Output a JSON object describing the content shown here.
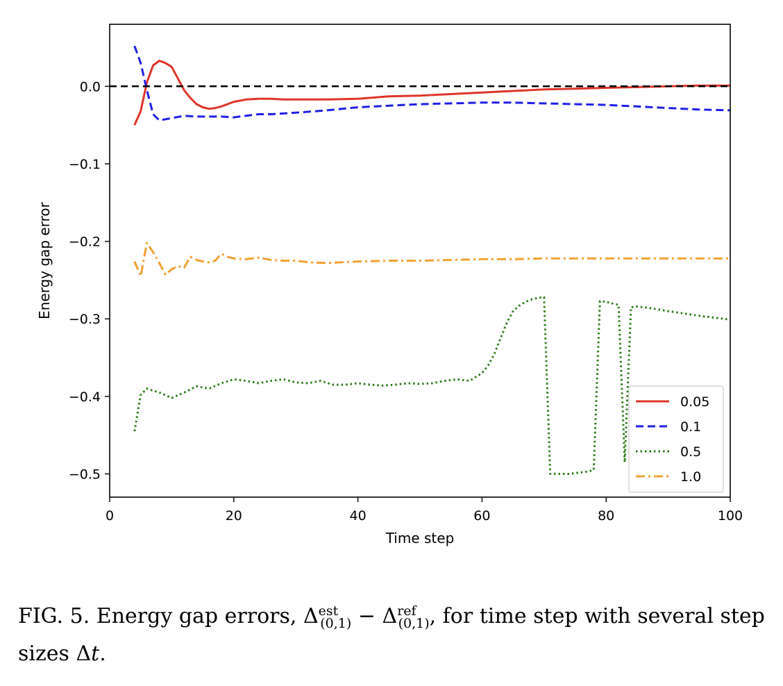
{
  "chart_data": {
    "type": "line",
    "xlabel": "Time step",
    "ylabel": "Energy gap error",
    "xlim": [
      0,
      100
    ],
    "ylim": [
      -0.53,
      0.08
    ],
    "xticks": [
      0,
      20,
      40,
      60,
      80,
      100
    ],
    "xtick_labels": [
      "0",
      "20",
      "40",
      "60",
      "80",
      "100"
    ],
    "yticks": [
      0.0,
      -0.1,
      -0.2,
      -0.3,
      -0.4,
      -0.5
    ],
    "ytick_labels": [
      "0.0",
      "−0.1",
      "−0.2",
      "−0.3",
      "−0.4",
      "−0.5"
    ],
    "grid": false,
    "legend_position": "lower-right",
    "reference_line": {
      "y": 0.0,
      "color": "#000000",
      "style": "dashed"
    },
    "series": [
      {
        "name": "0.05",
        "color": "#e0352b",
        "style": "solid",
        "x": [
          4,
          5,
          6,
          7,
          8,
          9,
          10,
          11,
          12,
          13,
          14,
          15,
          16,
          17,
          18,
          20,
          22,
          24,
          26,
          28,
          30,
          35,
          40,
          45,
          50,
          55,
          60,
          65,
          70,
          75,
          80,
          85,
          90,
          95,
          100
        ],
        "y": [
          -0.05,
          -0.032,
          0.005,
          0.027,
          0.033,
          0.03,
          0.025,
          0.01,
          -0.005,
          -0.015,
          -0.023,
          -0.027,
          -0.029,
          -0.028,
          -0.026,
          -0.02,
          -0.017,
          -0.016,
          -0.016,
          -0.017,
          -0.017,
          -0.017,
          -0.016,
          -0.013,
          -0.012,
          -0.01,
          -0.008,
          -0.006,
          -0.004,
          -0.003,
          -0.002,
          -0.001,
          0.0,
          0.001,
          0.001
        ]
      },
      {
        "name": "0.1",
        "color": "#1f1fe6",
        "style": "dashed",
        "x": [
          4,
          5,
          6,
          7,
          8,
          10,
          12,
          14,
          16,
          18,
          20,
          22,
          24,
          26,
          28,
          30,
          35,
          40,
          45,
          50,
          55,
          60,
          65,
          70,
          75,
          80,
          85,
          90,
          95,
          100
        ],
        "y": [
          0.052,
          0.03,
          -0.005,
          -0.036,
          -0.044,
          -0.041,
          -0.038,
          -0.039,
          -0.039,
          -0.039,
          -0.04,
          -0.038,
          -0.036,
          -0.036,
          -0.035,
          -0.034,
          -0.031,
          -0.027,
          -0.025,
          -0.023,
          -0.022,
          -0.021,
          -0.021,
          -0.022,
          -0.023,
          -0.024,
          -0.026,
          -0.028,
          -0.03,
          -0.031
        ]
      },
      {
        "name": "0.5",
        "color": "#2c7c17",
        "style": "dotted",
        "x": [
          4,
          5,
          6,
          8,
          10,
          12,
          14,
          16,
          18,
          20,
          22,
          24,
          26,
          28,
          30,
          32,
          34,
          36,
          38,
          40,
          42,
          44,
          46,
          48,
          50,
          52,
          54,
          56,
          58,
          60,
          61,
          62,
          63,
          64,
          65,
          66,
          67,
          68,
          69,
          70,
          71,
          72,
          73,
          74,
          75,
          76,
          77,
          78,
          79,
          80,
          81,
          82,
          83,
          84,
          85,
          87,
          90,
          95,
          100
        ],
        "y": [
          -0.445,
          -0.398,
          -0.39,
          -0.395,
          -0.402,
          -0.395,
          -0.387,
          -0.39,
          -0.383,
          -0.378,
          -0.38,
          -0.383,
          -0.38,
          -0.378,
          -0.382,
          -0.383,
          -0.38,
          -0.385,
          -0.385,
          -0.383,
          -0.385,
          -0.386,
          -0.385,
          -0.383,
          -0.384,
          -0.383,
          -0.38,
          -0.378,
          -0.38,
          -0.37,
          -0.36,
          -0.345,
          -0.325,
          -0.305,
          -0.29,
          -0.283,
          -0.278,
          -0.275,
          -0.273,
          -0.272,
          -0.5,
          -0.5,
          -0.5,
          -0.5,
          -0.499,
          -0.498,
          -0.497,
          -0.495,
          -0.277,
          -0.278,
          -0.28,
          -0.282,
          -0.485,
          -0.285,
          -0.284,
          -0.286,
          -0.29,
          -0.296,
          -0.301
        ]
      },
      {
        "name": "1.0",
        "color": "#f1a133",
        "style": "dashdot",
        "x": [
          4,
          5,
          6,
          7,
          8,
          9,
          10,
          11,
          12,
          13,
          14,
          15,
          16,
          17,
          18,
          19,
          20,
          22,
          24,
          26,
          28,
          30,
          32,
          35,
          40,
          45,
          50,
          55,
          60,
          65,
          70,
          75,
          80,
          85,
          90,
          95,
          100
        ],
        "y": [
          -0.226,
          -0.245,
          -0.202,
          -0.214,
          -0.228,
          -0.243,
          -0.236,
          -0.232,
          -0.234,
          -0.22,
          -0.224,
          -0.226,
          -0.227,
          -0.225,
          -0.216,
          -0.22,
          -0.222,
          -0.223,
          -0.221,
          -0.224,
          -0.225,
          -0.225,
          -0.227,
          -0.228,
          -0.226,
          -0.225,
          -0.225,
          -0.224,
          -0.223,
          -0.223,
          -0.222,
          -0.222,
          -0.222,
          -0.222,
          -0.222,
          -0.222,
          -0.222
        ]
      }
    ]
  },
  "caption": {
    "label": "FIG. 5.",
    "text_before": "Energy gap errors, ",
    "delta_symbol": "Δ",
    "est_sup": "est",
    "sub": "(0,1)",
    "minus": " − ",
    "ref_sup": "ref",
    "text_after": ", for time step with several step sizes ",
    "dt": "Δ",
    "dt_var": "t",
    "end": "."
  }
}
